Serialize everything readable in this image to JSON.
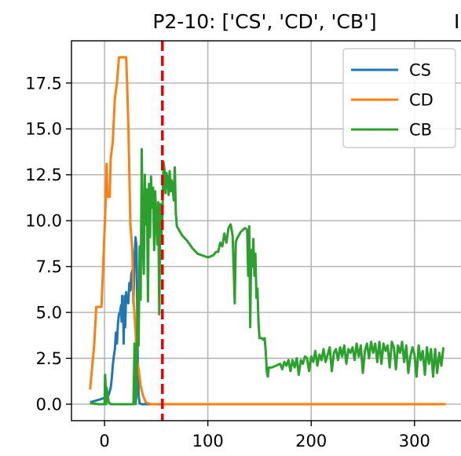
{
  "chart_data": {
    "type": "line",
    "title": "P2-10: ['CS', 'CD', 'CB']",
    "title_trailing_text": "I",
    "xlabel": "",
    "ylabel": "",
    "xlim": [
      -32,
      345
    ],
    "ylim": [
      -0.9,
      19.8
    ],
    "x_ticks": [
      0,
      100,
      200,
      300
    ],
    "x_tick_labels": [
      "0",
      "100",
      "200",
      "300"
    ],
    "y_ticks": [
      0.0,
      2.5,
      5.0,
      7.5,
      10.0,
      12.5,
      15.0,
      17.5
    ],
    "y_tick_labels": [
      "0.0",
      "2.5",
      "5.0",
      "7.5",
      "10.0",
      "12.5",
      "15.0",
      "17.5"
    ],
    "grid": true,
    "legend_position": "top-right",
    "vline": {
      "x": 56,
      "color": "#ee0000",
      "style": "dashed"
    },
    "series": [
      {
        "name": "CS",
        "color": "#1f77b4",
        "points": [
          [
            -14,
            0.1
          ],
          [
            -8,
            0.2
          ],
          [
            -2,
            0.3
          ],
          [
            2,
            0.4
          ],
          [
            4,
            0.5
          ],
          [
            6,
            0.9
          ],
          [
            7,
            1.4
          ],
          [
            8,
            2.1
          ],
          [
            9,
            2.6
          ],
          [
            10,
            3.0
          ],
          [
            11,
            3.9
          ],
          [
            12,
            3.3
          ],
          [
            13,
            4.4
          ],
          [
            14,
            4.9
          ],
          [
            15,
            5.0
          ],
          [
            16,
            5.4
          ],
          [
            16.5,
            4.5
          ],
          [
            17,
            5.9
          ],
          [
            17.5,
            4.8
          ],
          [
            18,
            5.4
          ],
          [
            18.5,
            3.3
          ],
          [
            19,
            4.8
          ],
          [
            19.5,
            5.9
          ],
          [
            20,
            4.2
          ],
          [
            21,
            6.1
          ],
          [
            21.5,
            5.6
          ],
          [
            22,
            5.8
          ],
          [
            23,
            5.5
          ],
          [
            24,
            6.6
          ],
          [
            25,
            6.2
          ],
          [
            26,
            7.1
          ],
          [
            27,
            7.3
          ],
          [
            28,
            5.5
          ],
          [
            29,
            7.9
          ],
          [
            30,
            9.1
          ],
          [
            31,
            8.5
          ],
          [
            32,
            3.0
          ],
          [
            33,
            0.5
          ],
          [
            34,
            0.05
          ],
          [
            36,
            0.0
          ],
          [
            40,
            0.0
          ],
          [
            60,
            0.0
          ],
          [
            100,
            0.0
          ],
          [
            200,
            0.0
          ],
          [
            330,
            0.0
          ]
        ]
      },
      {
        "name": "CD",
        "color": "#ff7f0e",
        "points": [
          [
            -14,
            0.8
          ],
          [
            -12,
            2.0
          ],
          [
            -10,
            3.2
          ],
          [
            -8,
            5.3
          ],
          [
            -6,
            5.3
          ],
          [
            -3,
            5.3
          ],
          [
            -1,
            8.0
          ],
          [
            1,
            10.9
          ],
          [
            2,
            13.1
          ],
          [
            3,
            11.3
          ],
          [
            5,
            11.3
          ],
          [
            6,
            13.4
          ],
          [
            8,
            14.3
          ],
          [
            10,
            16.7
          ],
          [
            12,
            17.5
          ],
          [
            14,
            18.9
          ],
          [
            18,
            18.9
          ],
          [
            21,
            18.9
          ],
          [
            22,
            17.3
          ],
          [
            23,
            15.2
          ],
          [
            24,
            12.6
          ],
          [
            25,
            9.8
          ],
          [
            27,
            8.3
          ],
          [
            28,
            5.8
          ],
          [
            30,
            4.0
          ],
          [
            31,
            2.6
          ],
          [
            33,
            1.9
          ],
          [
            35,
            1.0
          ],
          [
            37,
            0.5
          ],
          [
            40,
            0.1
          ],
          [
            45,
            0.0
          ],
          [
            60,
            0.0
          ],
          [
            100,
            0.0
          ],
          [
            200,
            0.0
          ],
          [
            300,
            0.0
          ],
          [
            330,
            0.0
          ]
        ]
      },
      {
        "name": "CB",
        "color": "#2ca02c",
        "points": [
          [
            -14,
            0.05
          ],
          [
            -5,
            0.0
          ],
          [
            0,
            0.0
          ],
          [
            0.5,
            1.6
          ],
          [
            1,
            1.2
          ],
          [
            1.5,
            0.0
          ],
          [
            2,
            0.9
          ],
          [
            3,
            0.5
          ],
          [
            4,
            0.1
          ],
          [
            6,
            0.0
          ],
          [
            15,
            0.0
          ],
          [
            25,
            0.0
          ],
          [
            28,
            0.0
          ],
          [
            29,
            3.3
          ],
          [
            30,
            0.0
          ],
          [
            31,
            0.5
          ],
          [
            32,
            6.2
          ],
          [
            33,
            3.2
          ],
          [
            34,
            8.6
          ],
          [
            35,
            5.7
          ],
          [
            36,
            13.9
          ],
          [
            37,
            9.0
          ],
          [
            38,
            7.1
          ],
          [
            39,
            12.5
          ],
          [
            40,
            9.8
          ],
          [
            41,
            11.7
          ],
          [
            42,
            5.6
          ],
          [
            43,
            12.0
          ],
          [
            44,
            9.1
          ],
          [
            45,
            12.4
          ],
          [
            46,
            10.7
          ],
          [
            47,
            11.8
          ],
          [
            48,
            8.4
          ],
          [
            49,
            11.6
          ],
          [
            50,
            10.3
          ],
          [
            51,
            8.7
          ],
          [
            52,
            11.0
          ],
          [
            53,
            4.9
          ],
          [
            54,
            10.9
          ],
          [
            55,
            9.2
          ],
          [
            56,
            10.2
          ],
          [
            57,
            13.2
          ],
          [
            58,
            12.8
          ],
          [
            59,
            11.5
          ],
          [
            60,
            12.6
          ],
          [
            61,
            12.2
          ],
          [
            62,
            11.4
          ],
          [
            63,
            12.7
          ],
          [
            64,
            11.6
          ],
          [
            65,
            12.2
          ],
          [
            66,
            11.8
          ],
          [
            67,
            11.1
          ],
          [
            68,
            12.9
          ],
          [
            69,
            10.4
          ],
          [
            70,
            9.7
          ],
          [
            75,
            9.2
          ],
          [
            80,
            8.9
          ],
          [
            85,
            8.5
          ],
          [
            90,
            8.2
          ],
          [
            95,
            8.1
          ],
          [
            100,
            8.0
          ],
          [
            105,
            8.1
          ],
          [
            108,
            8.3
          ],
          [
            110,
            8.3
          ],
          [
            112,
            8.8
          ],
          [
            114,
            8.6
          ],
          [
            116,
            9.3
          ],
          [
            118,
            8.8
          ],
          [
            120,
            9.6
          ],
          [
            122,
            9.8
          ],
          [
            124,
            9.2
          ],
          [
            126,
            5.5
          ],
          [
            127,
            8.8
          ],
          [
            128,
            9.0
          ],
          [
            130,
            9.2
          ],
          [
            132,
            9.4
          ],
          [
            134,
            9.5
          ],
          [
            136,
            9.6
          ],
          [
            138,
            9.5
          ],
          [
            139,
            7.0
          ],
          [
            140,
            9.7
          ],
          [
            141,
            4.2
          ],
          [
            142,
            8.4
          ],
          [
            143,
            7.5
          ],
          [
            144,
            9.0
          ],
          [
            145,
            7.0
          ],
          [
            146,
            8.2
          ],
          [
            147,
            5.8
          ],
          [
            148,
            6.3
          ],
          [
            149,
            4.5
          ],
          [
            150,
            3.6
          ],
          [
            152,
            3.6
          ],
          [
            154,
            3.5
          ],
          [
            155,
            3.6
          ],
          [
            156,
            2.9
          ],
          [
            157,
            1.8
          ],
          [
            158,
            1.5
          ],
          [
            159,
            2.0
          ],
          [
            162,
            2.0
          ],
          [
            166,
            2.1
          ],
          [
            170,
            2.2
          ],
          [
            172,
            1.9
          ],
          [
            174,
            2.3
          ],
          [
            176,
            2.1
          ],
          [
            178,
            2.4
          ],
          [
            180,
            1.8
          ],
          [
            182,
            2.4
          ],
          [
            184,
            2.0
          ],
          [
            186,
            2.5
          ],
          [
            188,
            1.6
          ],
          [
            190,
            2.4
          ],
          [
            192,
            2.2
          ],
          [
            194,
            2.6
          ],
          [
            196,
            2.5
          ],
          [
            198,
            1.8
          ],
          [
            200,
            2.6
          ],
          [
            202,
            2.3
          ],
          [
            204,
            2.9
          ],
          [
            206,
            2.1
          ],
          [
            208,
            2.7
          ],
          [
            210,
            2.4
          ],
          [
            212,
            3.0
          ],
          [
            214,
            2.3
          ],
          [
            216,
            2.7
          ],
          [
            218,
            3.1
          ],
          [
            220,
            1.8
          ],
          [
            222,
            2.8
          ],
          [
            224,
            3.0
          ],
          [
            226,
            2.4
          ],
          [
            228,
            3.1
          ],
          [
            230,
            2.6
          ],
          [
            232,
            3.2
          ],
          [
            234,
            2.2
          ],
          [
            236,
            3.0
          ],
          [
            238,
            2.8
          ],
          [
            240,
            3.1
          ],
          [
            242,
            2.4
          ],
          [
            244,
            3.3
          ],
          [
            246,
            2.6
          ],
          [
            248,
            3.2
          ],
          [
            250,
            1.7
          ],
          [
            252,
            2.9
          ],
          [
            254,
            3.3
          ],
          [
            256,
            2.5
          ],
          [
            258,
            3.4
          ],
          [
            260,
            2.8
          ],
          [
            262,
            3.3
          ],
          [
            264,
            2.3
          ],
          [
            266,
            3.4
          ],
          [
            268,
            2.2
          ],
          [
            270,
            3.3
          ],
          [
            272,
            2.9
          ],
          [
            274,
            3.2
          ],
          [
            276,
            2.0
          ],
          [
            278,
            3.4
          ],
          [
            280,
            3.1
          ],
          [
            282,
            1.9
          ],
          [
            284,
            3.2
          ],
          [
            286,
            2.8
          ],
          [
            288,
            3.4
          ],
          [
            290,
            2.3
          ],
          [
            292,
            3.2
          ],
          [
            294,
            1.7
          ],
          [
            296,
            2.6
          ],
          [
            298,
            3.1
          ],
          [
            300,
            2.7
          ],
          [
            302,
            1.5
          ],
          [
            304,
            3.2
          ],
          [
            306,
            2.4
          ],
          [
            308,
            2.9
          ],
          [
            310,
            1.6
          ],
          [
            312,
            3.1
          ],
          [
            314,
            2.2
          ],
          [
            316,
            3.0
          ],
          [
            318,
            1.5
          ],
          [
            320,
            3.0
          ],
          [
            322,
            1.7
          ],
          [
            324,
            2.8
          ],
          [
            326,
            2.1
          ],
          [
            328,
            3.1
          ]
        ]
      }
    ]
  }
}
